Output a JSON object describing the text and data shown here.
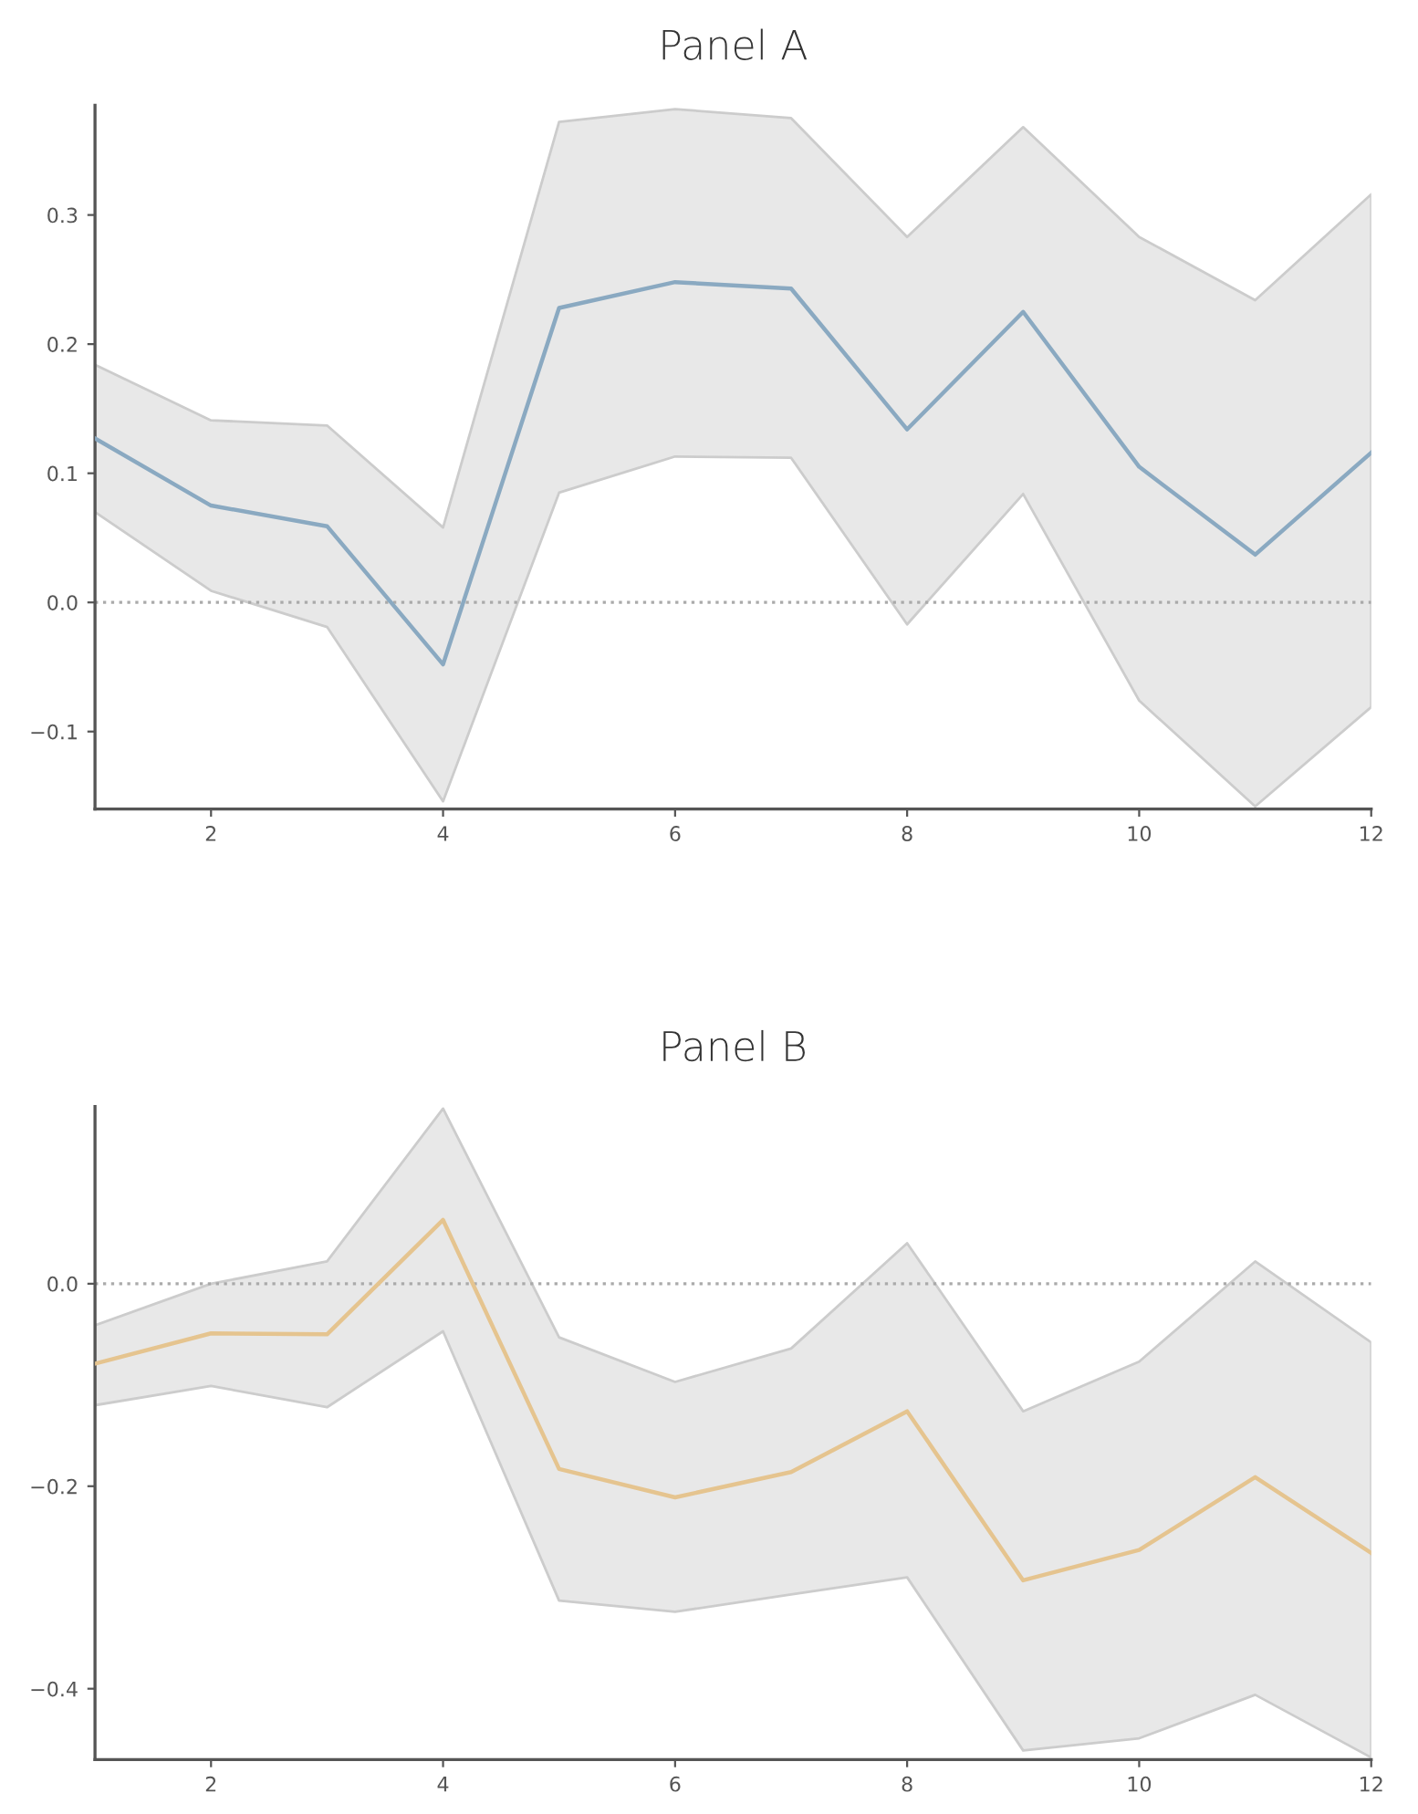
{
  "chart_data": [
    {
      "type": "line",
      "title": "Panel A",
      "x": [
        1,
        2,
        3,
        4,
        5,
        6,
        7,
        8,
        9,
        10,
        11,
        12
      ],
      "xlim": [
        1,
        12
      ],
      "xticks": [
        2,
        4,
        6,
        8,
        10,
        12
      ],
      "ylim": [
        -0.16,
        0.385
      ],
      "yticks": [
        -0.1,
        {
          "value": 0,
          "label": "0.0"
        },
        0.1,
        0.2,
        0.3
      ],
      "grid": false,
      "legend": false,
      "series": [
        {
          "color": "#8aa9c1",
          "values": [
            0.127,
            0.075,
            0.059,
            -0.048,
            0.228,
            0.248,
            0.243,
            0.134,
            0.225,
            0.105,
            0.037,
            0.116
          ],
          "lower": [
            0.07,
            0.009,
            -0.019,
            -0.154,
            0.085,
            0.113,
            0.112,
            -0.017,
            0.084,
            -0.076,
            -0.158,
            -0.081
          ],
          "upper": [
            0.184,
            0.141,
            0.137,
            0.058,
            0.372,
            0.382,
            0.375,
            0.283,
            0.368,
            0.283,
            0.234,
            0.316
          ]
        }
      ],
      "ref_lines": [
        {
          "axis": "y",
          "value": 0,
          "color": "#aaaaaa",
          "line_style": "dotted"
        }
      ]
    },
    {
      "type": "line",
      "title": "Panel B",
      "x": [
        1,
        2,
        3,
        4,
        5,
        6,
        7,
        8,
        9,
        10,
        11,
        12
      ],
      "xlim": [
        1,
        12
      ],
      "xticks": [
        2,
        4,
        6,
        8,
        10,
        12
      ],
      "ylim": [
        -0.47,
        0.175
      ],
      "yticks": [
        -0.4,
        -0.2,
        {
          "value": 0,
          "label": "0.0"
        }
      ],
      "grid": false,
      "legend": false,
      "series": [
        {
          "color": "#e5c48f",
          "values": [
            -0.079,
            -0.049,
            -0.05,
            0.063,
            -0.183,
            -0.211,
            -0.186,
            -0.126,
            -0.293,
            -0.263,
            -0.191,
            -0.266
          ],
          "lower": [
            -0.12,
            -0.101,
            -0.122,
            -0.047,
            -0.313,
            -0.324,
            -0.307,
            -0.29,
            -0.461,
            -0.449,
            -0.406,
            -0.468
          ],
          "upper": [
            -0.041,
            0.0,
            0.022,
            0.173,
            -0.053,
            -0.097,
            -0.064,
            0.04,
            -0.126,
            -0.077,
            0.022,
            -0.058
          ]
        }
      ],
      "ref_lines": [
        {
          "axis": "y",
          "value": 0,
          "color": "#aaaaaa",
          "line_style": "dotted"
        }
      ]
    }
  ]
}
